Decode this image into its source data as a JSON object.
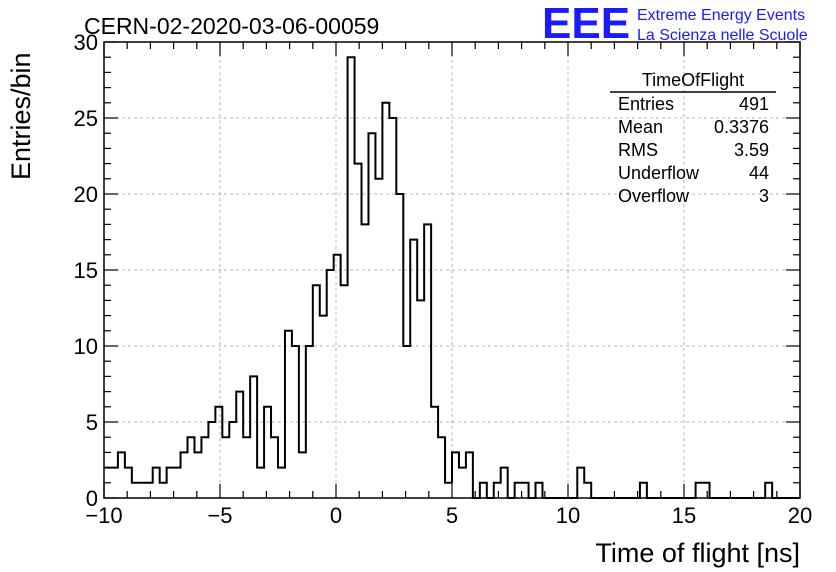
{
  "header": {
    "run_title": "CERN-02-2020-03-06-00059",
    "logo_text": "EEE",
    "logo_line1": "Extreme Energy Events",
    "logo_line2": "La Scienza nelle Scuole",
    "logo_color": "#1a1aff"
  },
  "stats": {
    "title": "TimeOfFlight",
    "rows": [
      {
        "label": "Entries",
        "value": "491"
      },
      {
        "label": "Mean",
        "value": "0.3376"
      },
      {
        "label": "RMS",
        "value": "3.59"
      },
      {
        "label": "Underflow",
        "value": "44"
      },
      {
        "label": "Overflow",
        "value": "3"
      }
    ]
  },
  "chart_data": {
    "type": "histogram",
    "title": "CERN-02-2020-03-06-00059",
    "xlabel": "Time of flight [ns]",
    "ylabel": "Entries/bin",
    "xlim": [
      -10,
      20
    ],
    "ylim": [
      0,
      30
    ],
    "bin_width": 0.3,
    "grid": true,
    "x_ticks": [
      -10,
      -5,
      0,
      5,
      10,
      15,
      20
    ],
    "x_tick_labels": [
      "−10",
      "−5",
      "0",
      "5",
      "10",
      "15",
      "20"
    ],
    "y_ticks": [
      0,
      5,
      10,
      15,
      20,
      25,
      30
    ],
    "y_tick_labels": [
      "0",
      "5",
      "10",
      "15",
      "20",
      "25",
      "30"
    ],
    "counts": [
      2,
      2,
      3,
      2,
      1,
      1,
      1,
      2,
      1,
      2,
      2,
      3,
      4,
      3,
      4,
      5,
      6,
      4,
      5,
      7,
      4,
      8,
      2,
      6,
      4,
      2,
      11,
      10,
      3,
      10,
      14,
      12,
      15,
      16,
      14,
      29,
      22,
      18,
      24,
      21,
      26,
      25,
      20,
      10,
      17,
      13,
      18,
      6,
      4,
      1,
      3,
      2,
      3,
      0,
      1,
      0,
      1,
      2,
      0,
      1,
      1,
      0,
      1,
      0,
      0,
      0,
      0,
      0,
      2,
      1,
      0,
      0,
      0,
      0,
      0,
      0,
      0,
      1,
      0,
      0,
      0,
      0,
      0,
      0,
      0,
      1,
      1,
      0,
      0,
      0,
      0,
      0,
      0,
      0,
      0,
      1,
      0,
      0,
      0,
      0
    ],
    "line_color": "#000000",
    "grid_color": "#b4b4b4"
  }
}
